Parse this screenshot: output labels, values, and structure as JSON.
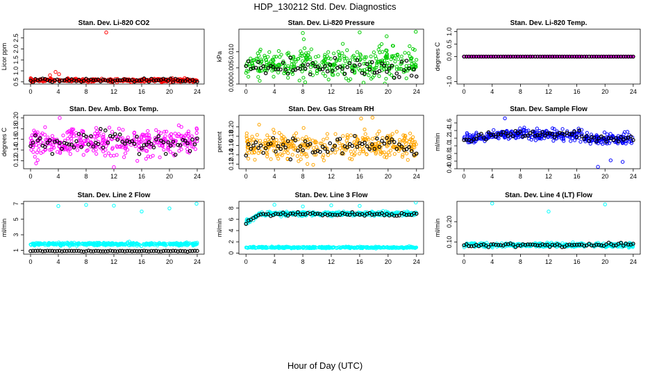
{
  "figure_title": "HDP_130212  Std. Dev. Diagnostics",
  "x_axis_label": "Hour of Day (UTC)",
  "colors": {
    "co2": "#ff0000",
    "pressure": "#00cc00",
    "temp": "#ff00ff",
    "ambbox": "#ff00ff",
    "rh": "#ffa500",
    "sampleflow": "#0000ff",
    "line2": "#00ffff",
    "line3": "#00ffff",
    "line4": "#00ffff",
    "black": "#000000"
  },
  "chart_data": [
    {
      "type": "scatter",
      "id": "co2",
      "title": "Stan. Dev. Li-820 CO2",
      "ylabel": "Licor ppm",
      "xlim": [
        -1,
        25
      ],
      "ylim": [
        0.4,
        2.9
      ],
      "xticks": [
        "0",
        "4",
        "8",
        "12",
        "16",
        "20",
        "24"
      ],
      "yticks": [
        "0.5",
        "1.0",
        "1.5",
        "2.0",
        "2.5"
      ],
      "series": [
        {
          "name": "colored",
          "color_key": "co2",
          "mean": 0.57,
          "spread": 0.06
        },
        {
          "name": "black",
          "color_key": "black",
          "mean": 0.57,
          "spread": 0.06
        }
      ],
      "outliers": [
        {
          "x": 10.9,
          "y": 2.75
        },
        {
          "x": 3.6,
          "y": 0.95
        },
        {
          "x": 4.1,
          "y": 0.85
        },
        {
          "x": 2.8,
          "y": 0.8
        }
      ]
    },
    {
      "type": "scatter",
      "id": "pressure",
      "title": "Stan. Dev. Li-820 Pressure",
      "ylabel": "kPa",
      "xlim": [
        -1,
        25
      ],
      "ylim": [
        0,
        0.017
      ],
      "xticks": [
        "0",
        "4",
        "8",
        "12",
        "16",
        "20",
        "24"
      ],
      "yticks": [
        "0.000",
        "0.005",
        "0.010"
      ],
      "series": [
        {
          "name": "colored",
          "color_key": "pressure",
          "mean": 0.006,
          "spread": 0.004
        },
        {
          "name": "black",
          "color_key": "black",
          "mean": 0.005,
          "spread": 0.003
        }
      ],
      "outliers": [
        {
          "x": 8.0,
          "y": 0.0158
        },
        {
          "x": 16.0,
          "y": 0.016
        },
        {
          "x": 19.8,
          "y": 0.0148
        },
        {
          "x": 23.9,
          "y": 0.0162
        }
      ]
    },
    {
      "type": "scatter",
      "id": "temp",
      "title": "Stan. Dev. Li-820 Temp.",
      "ylabel": "degrees C",
      "xlim": [
        -1,
        25
      ],
      "ylim": [
        -1.1,
        1.1
      ],
      "xticks": [
        "0",
        "4",
        "8",
        "12",
        "16",
        "20",
        "24"
      ],
      "yticks": [
        "-1.0",
        "0.0",
        "0.5",
        "1.0"
      ],
      "series": [
        {
          "name": "colored",
          "color_key": "temp",
          "mean": 0.0,
          "spread": 0.0
        },
        {
          "name": "black",
          "color_key": "black",
          "mean": 0.0,
          "spread": 0.0
        }
      ],
      "outliers": []
    },
    {
      "type": "scatter",
      "id": "ambbox",
      "title": "Stan. Dev. Amb. Box Temp.",
      "ylabel": "degrees C",
      "xlim": [
        -1,
        25
      ],
      "ylim": [
        0.105,
        0.205
      ],
      "xticks": [
        "0",
        "4",
        "8",
        "12",
        "16",
        "20",
        "24"
      ],
      "yticks": [
        "0.12",
        "0.14",
        "0.16",
        "0.18",
        "0.20"
      ],
      "series": [
        {
          "name": "colored",
          "color_key": "ambbox",
          "mean": 0.155,
          "spread": 0.02
        },
        {
          "name": "black",
          "color_key": "black",
          "mean": 0.155,
          "spread": 0.015
        }
      ],
      "outliers": [
        {
          "x": 4.2,
          "y": 0.2
        },
        {
          "x": 12.0,
          "y": 0.108
        }
      ]
    },
    {
      "type": "scatter",
      "id": "rh",
      "title": "Stan. Dev. Gas Stream RH",
      "ylabel": "percent",
      "xlim": [
        -1,
        25
      ],
      "ylim": [
        0.11,
        0.225
      ],
      "xticks": [
        "0",
        "4",
        "8",
        "12",
        "16",
        "20",
        "24"
      ],
      "yticks": [
        "0.12",
        "0.14",
        "0.16",
        "0.18",
        "0.20"
      ],
      "series": [
        {
          "name": "colored",
          "color_key": "rh",
          "mean": 0.16,
          "spread": 0.022
        },
        {
          "name": "black",
          "color_key": "black",
          "mean": 0.158,
          "spread": 0.018
        }
      ],
      "outliers": [
        {
          "x": 16.2,
          "y": 0.218
        },
        {
          "x": 17.8,
          "y": 0.22
        }
      ]
    },
    {
      "type": "scatter",
      "id": "sampleflow",
      "title": "Stan. Dev. Sample Flow",
      "ylabel": "ml/min",
      "xlim": [
        -1,
        25
      ],
      "ylim": [
        0.4,
        1.8
      ],
      "xticks": [
        "0",
        "4",
        "8",
        "12",
        "16",
        "20",
        "24"
      ],
      "yticks": [
        "0.4",
        "0.6",
        "0.8",
        "1.0",
        "1.2",
        "1.4",
        "1.6"
      ],
      "series": [
        {
          "name": "colored",
          "color_key": "sampleflow",
          "mean": 1.3,
          "spread": 0.12
        },
        {
          "name": "black",
          "color_key": "black",
          "mean": 1.3,
          "spread": 0.08
        }
      ],
      "outliers": [
        {
          "x": 5.8,
          "y": 1.72
        },
        {
          "x": 19.0,
          "y": 0.45
        },
        {
          "x": 20.8,
          "y": 0.62
        },
        {
          "x": 22.5,
          "y": 0.58
        }
      ]
    },
    {
      "type": "scatter",
      "id": "line2",
      "title": "Stan. Dev. Line 2 Flow",
      "ylabel": "ml/min",
      "xlim": [
        -1,
        25
      ],
      "ylim": [
        0.5,
        7.3
      ],
      "xticks": [
        "0",
        "4",
        "8",
        "12",
        "16",
        "20",
        "24"
      ],
      "yticks": [
        "1",
        "3",
        "5",
        "7"
      ],
      "series": [
        {
          "name": "colored",
          "color_key": "line2",
          "mean": 1.8,
          "spread": 0.15
        },
        {
          "name": "black",
          "color_key": "black",
          "mean": 0.9,
          "spread": 0.05
        }
      ],
      "outliers": [
        {
          "x": 4.0,
          "y": 6.7
        },
        {
          "x": 8.0,
          "y": 6.85
        },
        {
          "x": 12.0,
          "y": 6.75
        },
        {
          "x": 16.0,
          "y": 6.0
        },
        {
          "x": 20.0,
          "y": 6.4
        },
        {
          "x": 23.9,
          "y": 7.0
        }
      ]
    },
    {
      "type": "scatter",
      "id": "line3",
      "title": "Stan. Dev. Line 3 Flow",
      "ylabel": "ml/min",
      "xlim": [
        -1,
        25
      ],
      "ylim": [
        -0.2,
        9.2
      ],
      "xticks": [
        "0",
        "4",
        "8",
        "12",
        "16",
        "20",
        "24"
      ],
      "yticks": [
        "0",
        "2",
        "4",
        "6",
        "8"
      ],
      "series": [
        {
          "name": "colored-low",
          "color_key": "line3",
          "mean": 1.0,
          "spread": 0.12
        },
        {
          "name": "colored-high",
          "color_key": "line3",
          "mean": 7.0,
          "spread": 0.3
        },
        {
          "name": "black",
          "color_key": "black",
          "mean": 6.9,
          "spread": 0.25
        }
      ],
      "outliers": [
        {
          "x": 4.0,
          "y": 8.6
        },
        {
          "x": 8.0,
          "y": 8.3
        },
        {
          "x": 12.0,
          "y": 8.5
        },
        {
          "x": 16.0,
          "y": 8.4
        },
        {
          "x": 23.9,
          "y": 9.0
        }
      ]
    },
    {
      "type": "scatter",
      "id": "line4",
      "title": "Stan. Dev. Line 4 (LT) Flow",
      "ylabel": "ml/min",
      "xlim": [
        -1,
        25
      ],
      "ylim": [
        0.04,
        0.3
      ],
      "xticks": [
        "0",
        "4",
        "8",
        "12",
        "16",
        "20",
        "24"
      ],
      "yticks": [
        "0.10",
        "0.20"
      ],
      "series": [
        {
          "name": "colored",
          "color_key": "line4",
          "mean": 0.085,
          "spread": 0.008
        },
        {
          "name": "black",
          "color_key": "black",
          "mean": 0.085,
          "spread": 0.007
        }
      ],
      "outliers": [
        {
          "x": 4.0,
          "y": 0.29
        },
        {
          "x": 12.0,
          "y": 0.25
        },
        {
          "x": 20.0,
          "y": 0.285
        }
      ]
    }
  ]
}
